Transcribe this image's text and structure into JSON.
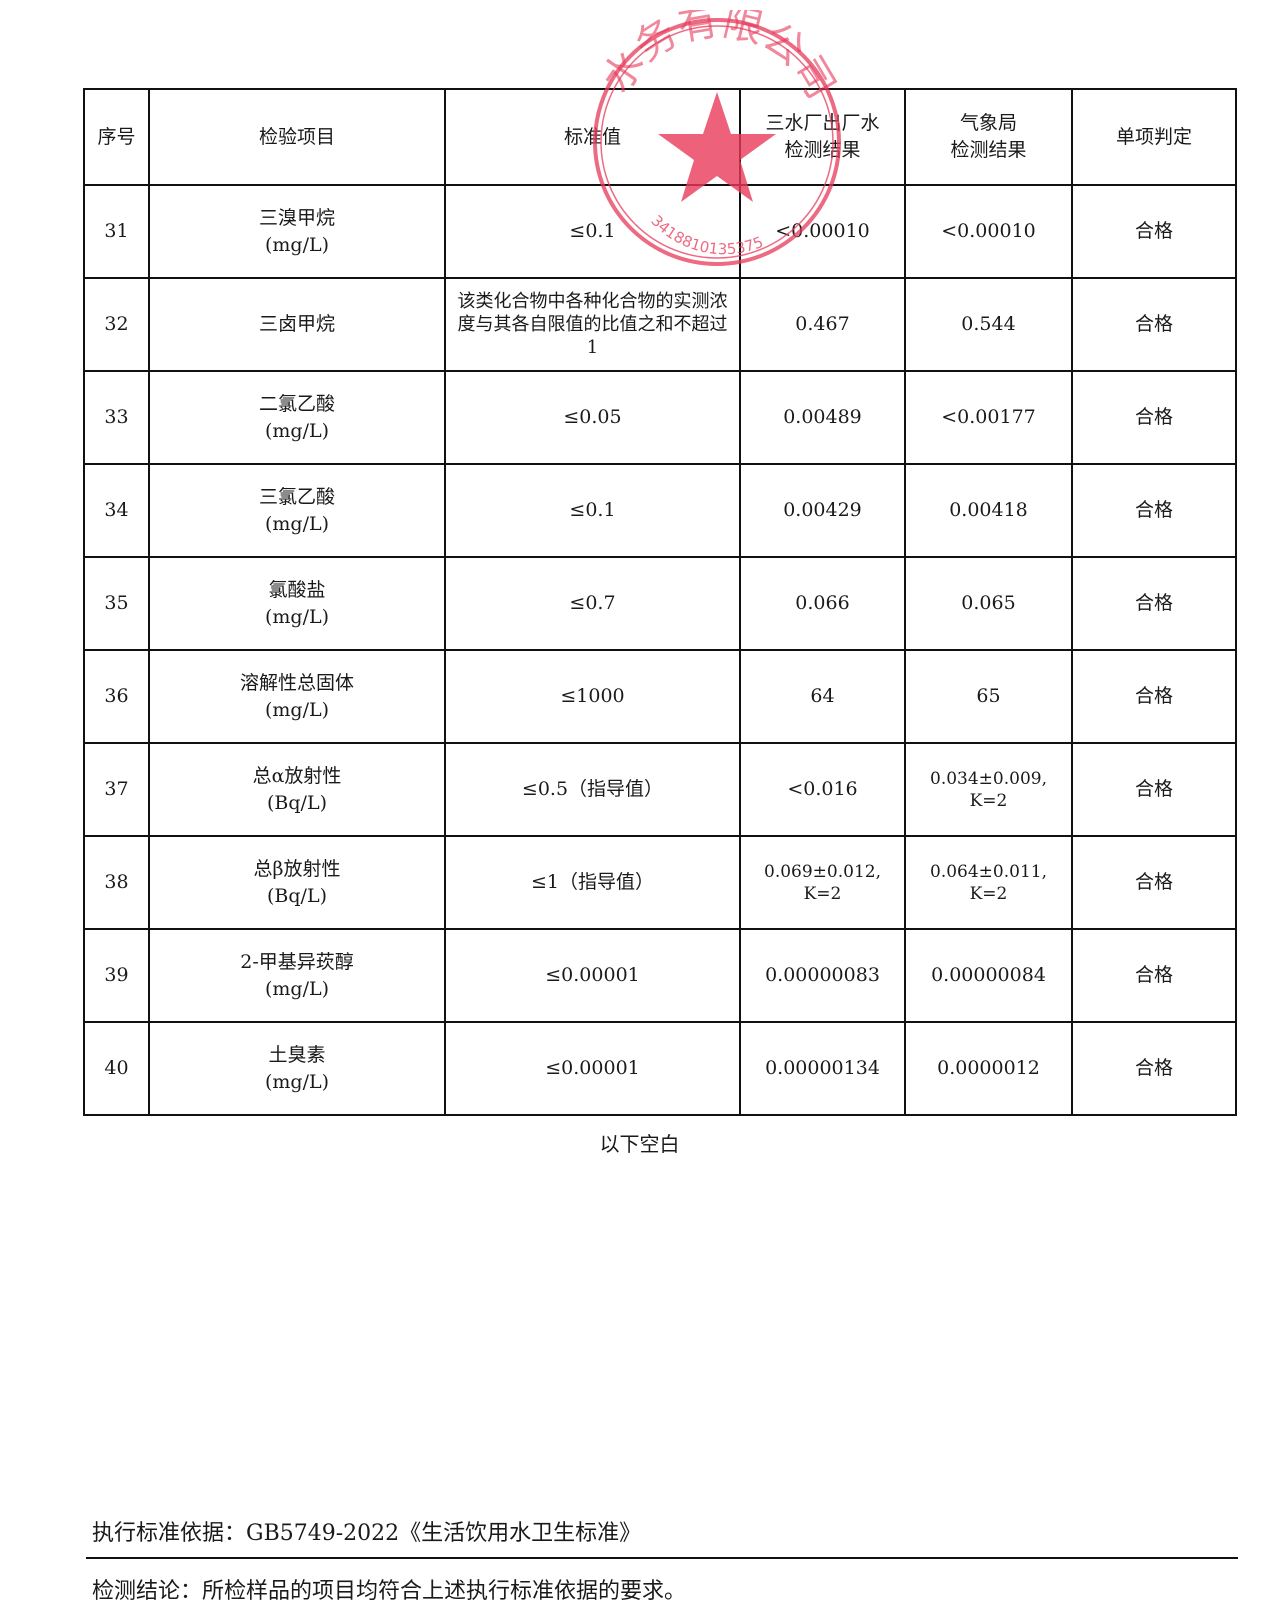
{
  "table": {
    "headers": [
      "序号",
      "检验项目",
      "标准值",
      "三水厂出厂水检测结果",
      "气象局检测结果",
      "单项判定"
    ],
    "header_lines": {
      "col3": [
        "三水厂出厂水",
        "检测结果"
      ],
      "col4": [
        "气象局",
        "检测结果"
      ]
    },
    "rows": [
      {
        "no": "31",
        "item": "三溴甲烷",
        "unit": "(mg/L)",
        "standard": "≤0.1",
        "plant": "<0.00010",
        "bureau": "<0.00010",
        "verdict": "合格"
      },
      {
        "no": "32",
        "item": "三卤甲烷",
        "unit": "",
        "standard": "该类化合物中各种化合物的实测浓度与其各自限值的比值之和不超过1",
        "plant": "0.467",
        "bureau": "0.544",
        "verdict": "合格"
      },
      {
        "no": "33",
        "item": "二氯乙酸",
        "unit": "(mg/L)",
        "standard": "≤0.05",
        "plant": "0.00489",
        "bureau": "<0.00177",
        "verdict": "合格"
      },
      {
        "no": "34",
        "item": "三氯乙酸",
        "unit": "(mg/L)",
        "standard": "≤0.1",
        "plant": "0.00429",
        "bureau": "0.00418",
        "verdict": "合格"
      },
      {
        "no": "35",
        "item": "氯酸盐",
        "unit": "(mg/L)",
        "standard": "≤0.7",
        "plant": "0.066",
        "bureau": "0.065",
        "verdict": "合格"
      },
      {
        "no": "36",
        "item": "溶解性总固体",
        "unit": "(mg/L)",
        "standard": "≤1000",
        "plant": "64",
        "bureau": "65",
        "verdict": "合格"
      },
      {
        "no": "37",
        "item": "总α放射性",
        "unit": "(Bq/L)",
        "standard": "≤0.5（指导值）",
        "plant": "<0.016",
        "bureau": "0.034±0.009,",
        "bureau2": "K=2",
        "verdict": "合格"
      },
      {
        "no": "38",
        "item": "总β放射性",
        "unit": "(Bq/L)",
        "standard": "≤1（指导值）",
        "plant": "0.069±0.012,",
        "plant2": "K=2",
        "bureau": "0.064±0.011,",
        "bureau2": "K=2",
        "verdict": "合格"
      },
      {
        "no": "39",
        "item": "2-甲基异莰醇",
        "unit": "(mg/L)",
        "standard": "≤0.00001",
        "plant": "0.00000083",
        "bureau": "0.00000084",
        "verdict": "合格"
      },
      {
        "no": "40",
        "item": "土臭素",
        "unit": "(mg/L)",
        "standard": "≤0.00001",
        "plant": "0.00000134",
        "bureau": "0.0000012",
        "verdict": "合格"
      }
    ]
  },
  "blank_note": "以下空白",
  "basis": "执行标准依据：GB5749-2022《生活饮用水卫生标准》",
  "conclusion": "检测结论：所检样品的项目均符合上述执行标准依据的要求。",
  "stamp": {
    "text": "水务有限公司",
    "number": "3418810135375",
    "color": "#e8395a"
  }
}
